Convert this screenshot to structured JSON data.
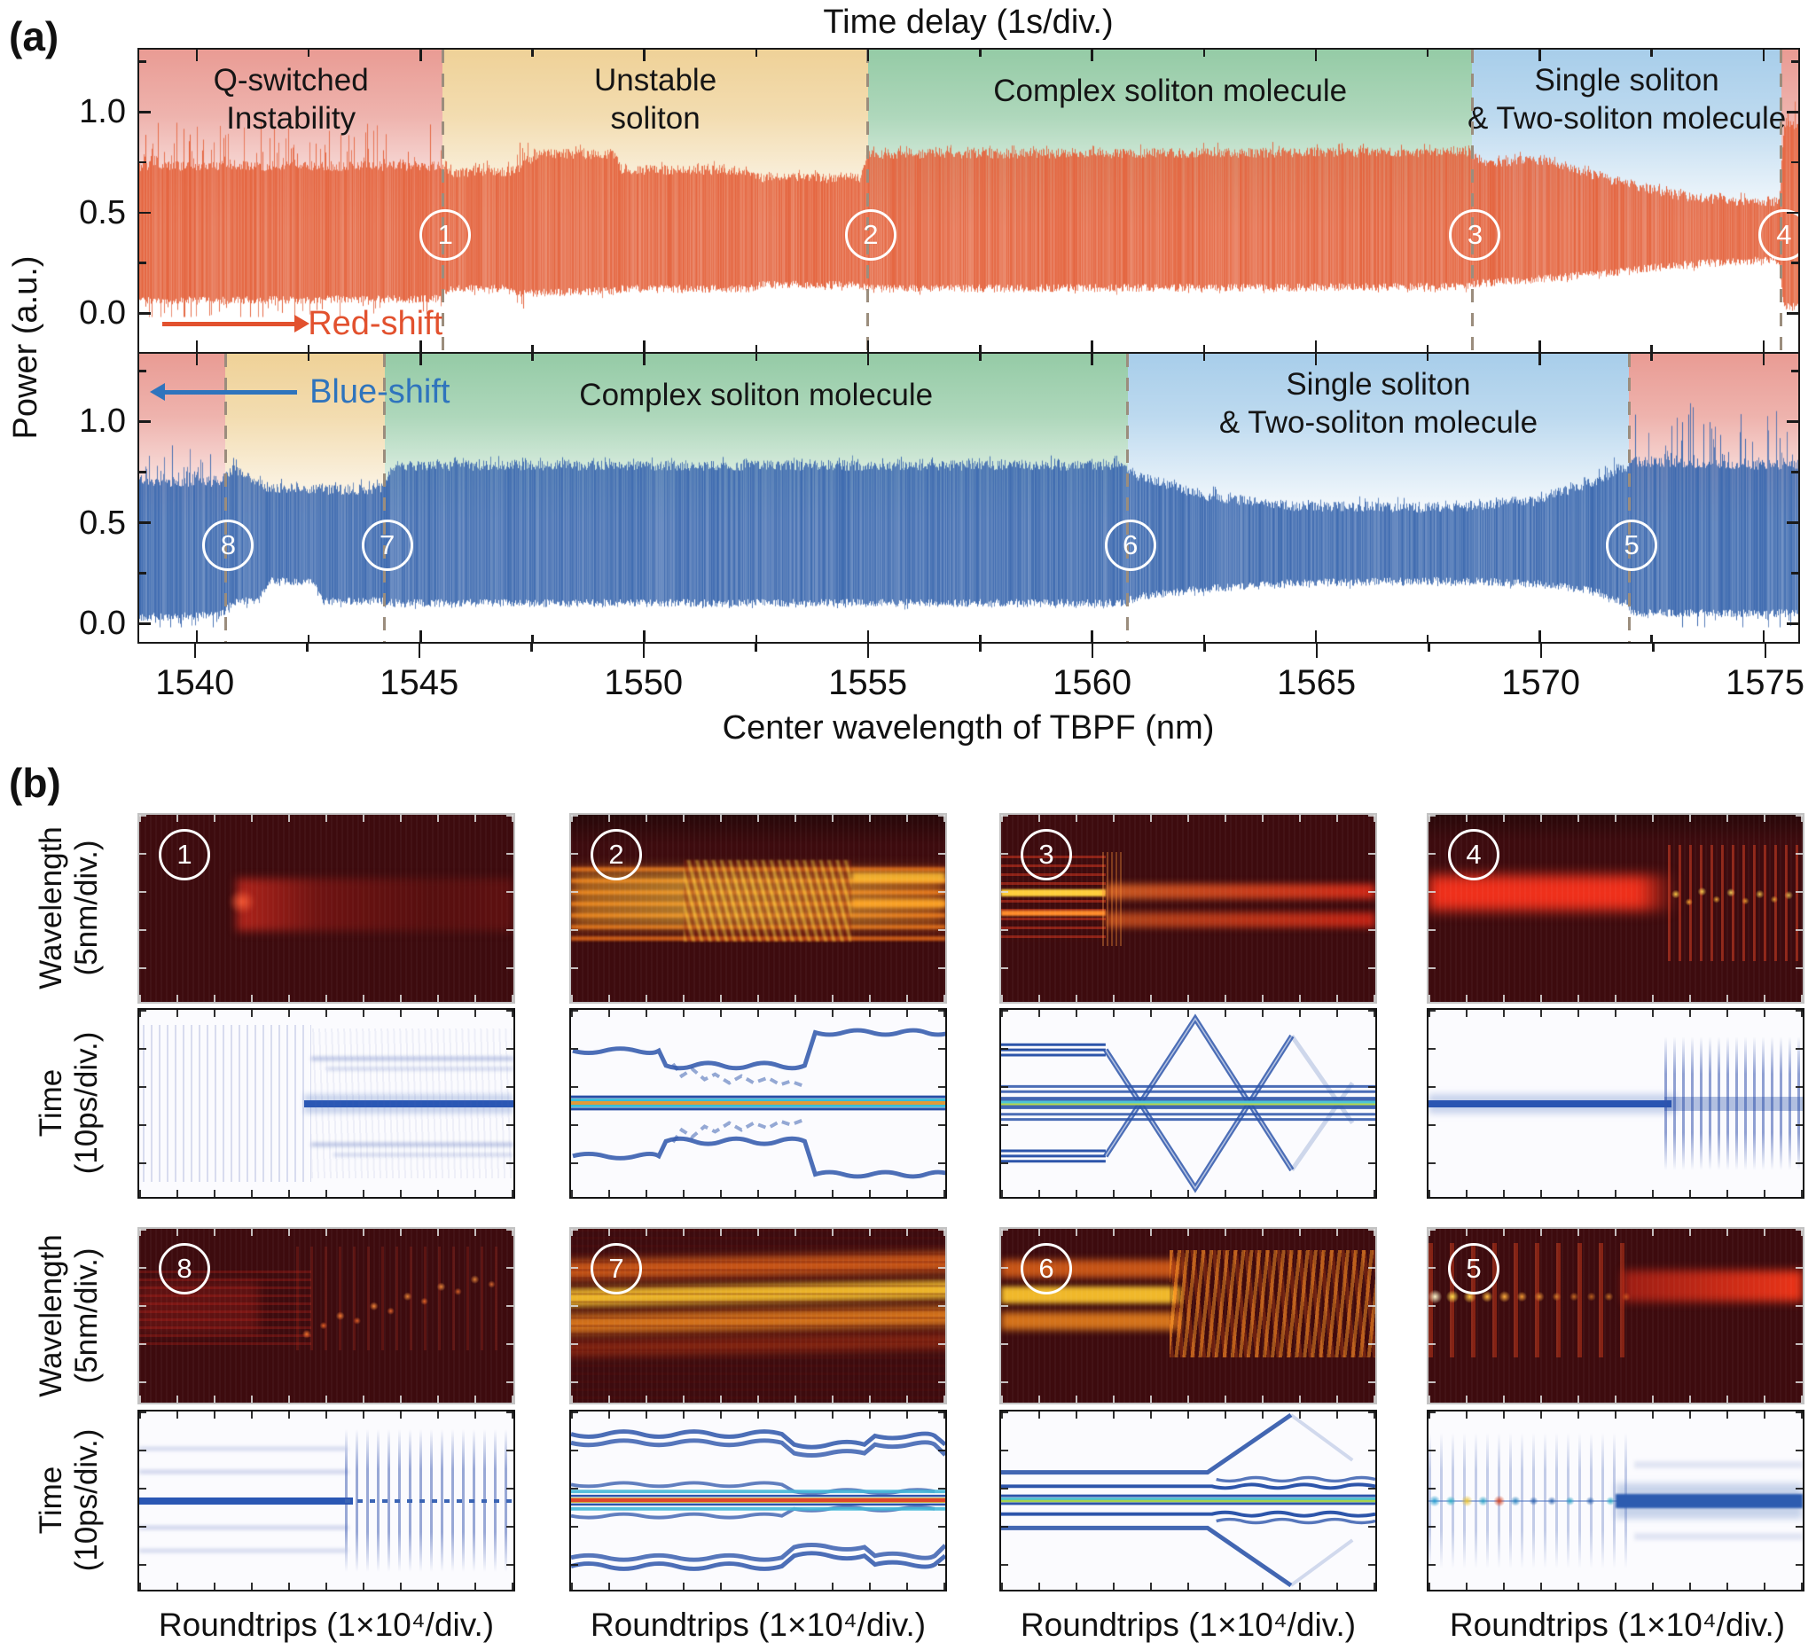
{
  "figure": {
    "label_a": "(a)",
    "label_b": "(b)"
  },
  "panel_a": {
    "top_axis_title": "Time delay (1s/div.)",
    "xlabel": "Center wavelength of TBPF (nm)",
    "ylabel": "Power (a.u.)",
    "red_shift_label": "Red-shift",
    "blue_shift_label": "Blue-shift"
  },
  "panel_b": {
    "ylabel_wavelength_l1": "Wavelength",
    "ylabel_wavelength_l2": "(5nm/div.)",
    "ylabel_time_l1": "Time",
    "ylabel_time_l2": "(10ps/div.)",
    "xlabel": "Roundtrips (1×10⁴/div.)",
    "row1_markers": [
      "1",
      "2",
      "3",
      "4"
    ],
    "row2_markers": [
      "8",
      "7",
      "6",
      "5"
    ]
  },
  "chart_data": {
    "type": "area",
    "title": "Time delay (1s/div.)",
    "xlabel": "Center wavelength of TBPF (nm)",
    "ylabel": "Power (a.u.)",
    "x_range": [
      1538.72,
      1575.78
    ],
    "x_tick_values": [
      1540,
      1545,
      1550,
      1555,
      1560,
      1565,
      1570,
      1575
    ],
    "x_minor_step": 2.5,
    "y_tick_values": [
      1.0,
      0.5,
      0.0
    ],
    "y_minor_values": [
      0,
      0.25,
      0.5,
      0.75,
      1.0,
      1.25
    ],
    "trace_colors": {
      "red_scan": "#e4633d",
      "blue_scan": "#3c69af"
    },
    "region_colors": {
      "qswitch": "#e8968e",
      "unstable": "#eecf92",
      "complex": "#8fc8a1",
      "single": "#a3cbe9"
    },
    "dash_color": "#9b8d7d",
    "panels": [
      {
        "id": "red_scan",
        "direction": "red-shift",
        "marker_power": 0.4,
        "envelope": [
          [
            1538.72,
            0.06,
            0.73,
            0.22
          ],
          [
            1545.4,
            0.07,
            0.73,
            0.2
          ],
          [
            1545.6,
            0.12,
            0.7,
            0.04
          ],
          [
            1546.9,
            0.12,
            0.7,
            0.05
          ],
          [
            1547.2,
            0.1,
            0.72,
            0.18
          ],
          [
            1547.6,
            0.1,
            0.79,
            0.03
          ],
          [
            1549.3,
            0.11,
            0.79,
            0.03
          ],
          [
            1549.5,
            0.12,
            0.71,
            0.03
          ],
          [
            1552.3,
            0.12,
            0.71,
            0.03
          ],
          [
            1552.6,
            0.14,
            0.67,
            0.03
          ],
          [
            1554.8,
            0.14,
            0.67,
            0.03
          ],
          [
            1555.0,
            0.12,
            0.79,
            0.03
          ],
          [
            1568.4,
            0.13,
            0.8,
            0.03
          ],
          [
            1568.7,
            0.15,
            0.75,
            0.03
          ],
          [
            1570.1,
            0.17,
            0.76,
            0.03
          ],
          [
            1571.6,
            0.2,
            0.66,
            0.03
          ],
          [
            1573.2,
            0.24,
            0.58,
            0.03
          ],
          [
            1574.8,
            0.26,
            0.55,
            0.03
          ],
          [
            1575.35,
            0.26,
            0.55,
            0.03
          ],
          [
            1575.45,
            0.03,
            0.93,
            0.12
          ],
          [
            1575.78,
            0.03,
            0.93,
            0.12
          ]
        ],
        "markers": [
          {
            "n": "1",
            "x": 1545.5
          },
          {
            "n": "2",
            "x": 1555.0
          },
          {
            "n": "3",
            "x": 1568.5
          },
          {
            "n": "4",
            "x": 1575.4
          }
        ],
        "regions": [
          {
            "from": 1538.72,
            "to": 1545.5,
            "color": "qswitch",
            "label": [
              "Q-switched",
              "Instability"
            ]
          },
          {
            "from": 1545.5,
            "to": 1555.0,
            "color": "unstable",
            "label": [
              "Unstable",
              "soliton"
            ]
          },
          {
            "from": 1555.0,
            "to": 1568.5,
            "color": "complex",
            "label": [
              "Complex soliton molecule"
            ]
          },
          {
            "from": 1568.5,
            "to": 1575.4,
            "color": "single",
            "label": [
              "Single soliton",
              "& Two-soliton molecule"
            ]
          },
          {
            "from": 1575.4,
            "to": 1575.78,
            "color": "qswitch",
            "label": []
          }
        ]
      },
      {
        "id": "blue_scan",
        "direction": "blue-shift",
        "marker_power": 0.4,
        "envelope": [
          [
            1538.72,
            0.03,
            0.7,
            0.22
          ],
          [
            1540.5,
            0.04,
            0.7,
            0.2
          ],
          [
            1540.8,
            0.1,
            0.76,
            0.06
          ],
          [
            1541.4,
            0.12,
            0.7,
            0.04
          ],
          [
            1541.6,
            0.21,
            0.67,
            0.03
          ],
          [
            1542.6,
            0.2,
            0.66,
            0.03
          ],
          [
            1542.8,
            0.11,
            0.66,
            0.04
          ],
          [
            1544.1,
            0.11,
            0.66,
            0.04
          ],
          [
            1544.4,
            0.1,
            0.78,
            0.03
          ],
          [
            1560.7,
            0.1,
            0.78,
            0.03
          ],
          [
            1561.0,
            0.13,
            0.73,
            0.03
          ],
          [
            1562.5,
            0.17,
            0.63,
            0.03
          ],
          [
            1564.5,
            0.2,
            0.58,
            0.03
          ],
          [
            1567.8,
            0.21,
            0.57,
            0.03
          ],
          [
            1569.8,
            0.2,
            0.6,
            0.03
          ],
          [
            1571.2,
            0.16,
            0.7,
            0.04
          ],
          [
            1571.9,
            0.1,
            0.77,
            0.08
          ],
          [
            1572.1,
            0.05,
            0.8,
            0.28
          ],
          [
            1575.78,
            0.05,
            0.78,
            0.3
          ]
        ],
        "markers": [
          {
            "n": "8",
            "x": 1540.65
          },
          {
            "n": "7",
            "x": 1544.2
          },
          {
            "n": "6",
            "x": 1560.8
          },
          {
            "n": "5",
            "x": 1572.0
          }
        ],
        "regions": [
          {
            "from": 1538.72,
            "to": 1540.65,
            "color": "qswitch",
            "label": []
          },
          {
            "from": 1540.65,
            "to": 1544.2,
            "color": "unstable",
            "label": []
          },
          {
            "from": 1544.2,
            "to": 1560.8,
            "color": "complex",
            "label": [
              "Complex soliton molecule"
            ]
          },
          {
            "from": 1560.8,
            "to": 1572.0,
            "color": "single",
            "label": [
              "Single soliton",
              "& Two-soliton molecule"
            ]
          },
          {
            "from": 1572.0,
            "to": 1575.78,
            "color": "qswitch",
            "label": []
          }
        ]
      }
    ]
  }
}
